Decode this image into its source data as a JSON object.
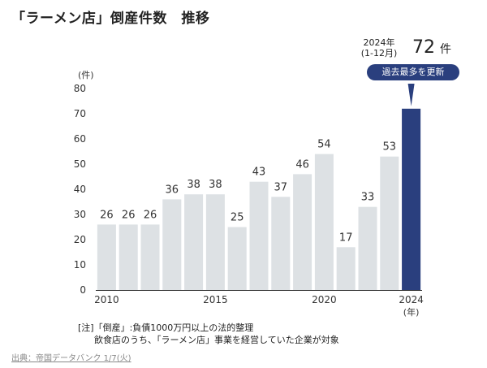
{
  "title": "「ラーメン店」倒産件数　推移",
  "highlight": {
    "period_year": "2024年",
    "period_range": "(1-12月)",
    "count": "72",
    "count_unit": "件",
    "badge": "過去最多を更新"
  },
  "note": {
    "line1": "[注]「倒産」:負債1000万円以上の法的整理",
    "line2": "飲食店のうち、「ラーメン店」事業を経営していた企業が対象"
  },
  "source": "出典：帝国データバンク 1/7(火)",
  "colors": {
    "bar": "#dde1e4",
    "highlight_bar": "#2a3f7e",
    "badge": "#2a3f7e"
  },
  "chart_data": {
    "type": "bar",
    "years": [
      2010,
      2011,
      2012,
      2013,
      2014,
      2015,
      2016,
      2017,
      2018,
      2019,
      2020,
      2021,
      2022,
      2023,
      2024
    ],
    "values": [
      26,
      26,
      26,
      36,
      38,
      38,
      25,
      43,
      37,
      46,
      54,
      17,
      33,
      53,
      72
    ],
    "x_tick_labels": [
      {
        "year": 2010,
        "label": "2010"
      },
      {
        "year": 2015,
        "label": "2015"
      },
      {
        "year": 2020,
        "label": "2020"
      },
      {
        "year": 2024,
        "label": "2024"
      }
    ],
    "xlabel": "(年)",
    "ylabel": "(件)",
    "yticks": [
      0,
      10,
      20,
      30,
      40,
      50,
      60,
      70,
      80
    ],
    "ylim": [
      0,
      80
    ],
    "highlight_year": 2024,
    "data_labels_on": true
  }
}
